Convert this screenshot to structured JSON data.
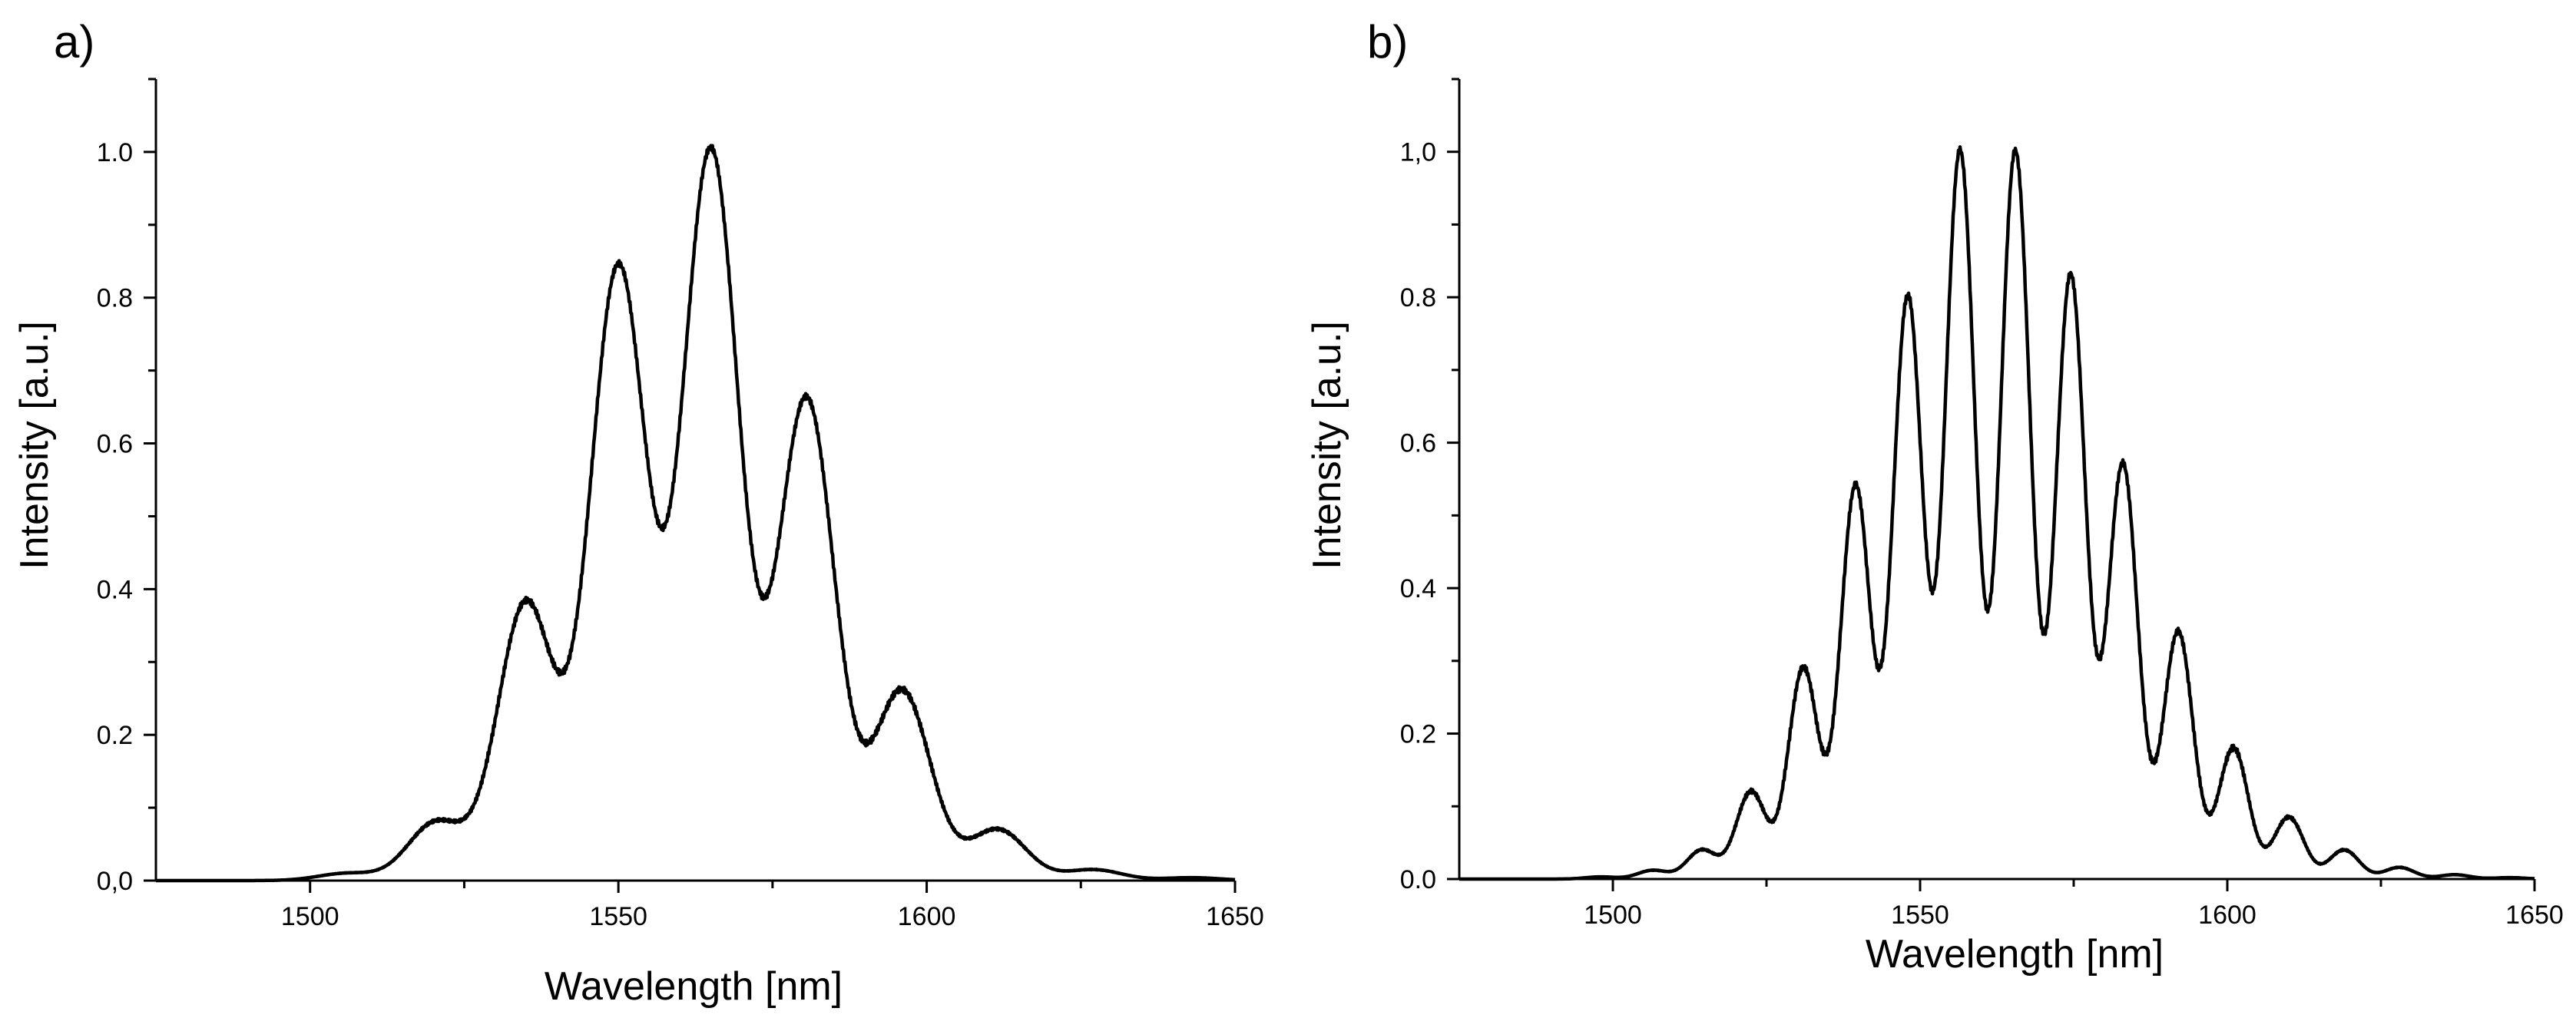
{
  "chart_data": [
    {
      "panel_label": "a)",
      "type": "line",
      "xlabel": "Wavelength [nm]",
      "ylabel": "Intensity [a.u.]",
      "xlim": [
        1475,
        1650
      ],
      "ylim": [
        0,
        1.1
      ],
      "xticks": [
        1500,
        1550,
        1600,
        1650
      ],
      "xtick_labels": [
        "1500",
        "1550",
        "1600",
        "1650"
      ],
      "yticks": [
        0,
        0.2,
        0.4,
        0.6,
        0.8,
        1.0
      ],
      "ytick_labels": [
        "0,0",
        "0.2",
        "0.4",
        "0.6",
        "0.8",
        "1.0"
      ],
      "grid": false,
      "peaks": [
        {
          "x": 1506,
          "y": 0.01
        },
        {
          "x": 1520.5,
          "y": 0.08
        },
        {
          "x": 1535,
          "y": 0.38
        },
        {
          "x": 1550,
          "y": 0.84
        },
        {
          "x": 1565,
          "y": 1.0
        },
        {
          "x": 1580.5,
          "y": 0.66
        },
        {
          "x": 1596,
          "y": 0.26
        },
        {
          "x": 1611.5,
          "y": 0.07
        },
        {
          "x": 1627,
          "y": 0.015
        },
        {
          "x": 1643,
          "y": 0.004
        }
      ],
      "peak_sigma": 4.6
    },
    {
      "panel_label": "b)",
      "type": "line",
      "xlabel": "Wavelength [nm]",
      "ylabel": "Intensity [a.u.]",
      "xlim": [
        1475,
        1650
      ],
      "ylim": [
        0,
        1.1
      ],
      "xticks": [
        1500,
        1550,
        1600,
        1650
      ],
      "xtick_labels": [
        "1500",
        "1550",
        "1600",
        "1650"
      ],
      "yticks": [
        0,
        0.2,
        0.4,
        0.6,
        0.8,
        1.0
      ],
      "ytick_labels": [
        "0.0",
        "0.2",
        "0.4",
        "0.6",
        "0.8",
        "1,0"
      ],
      "grid": false,
      "peaks": [
        {
          "x": 1498,
          "y": 0.003
        },
        {
          "x": 1506.5,
          "y": 0.012
        },
        {
          "x": 1514.5,
          "y": 0.04
        },
        {
          "x": 1522.5,
          "y": 0.12
        },
        {
          "x": 1531,
          "y": 0.29
        },
        {
          "x": 1539.5,
          "y": 0.54
        },
        {
          "x": 1548,
          "y": 0.8
        },
        {
          "x": 1556.5,
          "y": 1.0
        },
        {
          "x": 1565.5,
          "y": 1.0
        },
        {
          "x": 1574.5,
          "y": 0.83
        },
        {
          "x": 1583,
          "y": 0.57
        },
        {
          "x": 1592,
          "y": 0.34
        },
        {
          "x": 1601,
          "y": 0.18
        },
        {
          "x": 1610,
          "y": 0.085
        },
        {
          "x": 1619,
          "y": 0.04
        },
        {
          "x": 1628,
          "y": 0.016
        },
        {
          "x": 1637,
          "y": 0.006
        },
        {
          "x": 1646,
          "y": 0.002
        }
      ],
      "peak_sigma": 2.45
    }
  ]
}
